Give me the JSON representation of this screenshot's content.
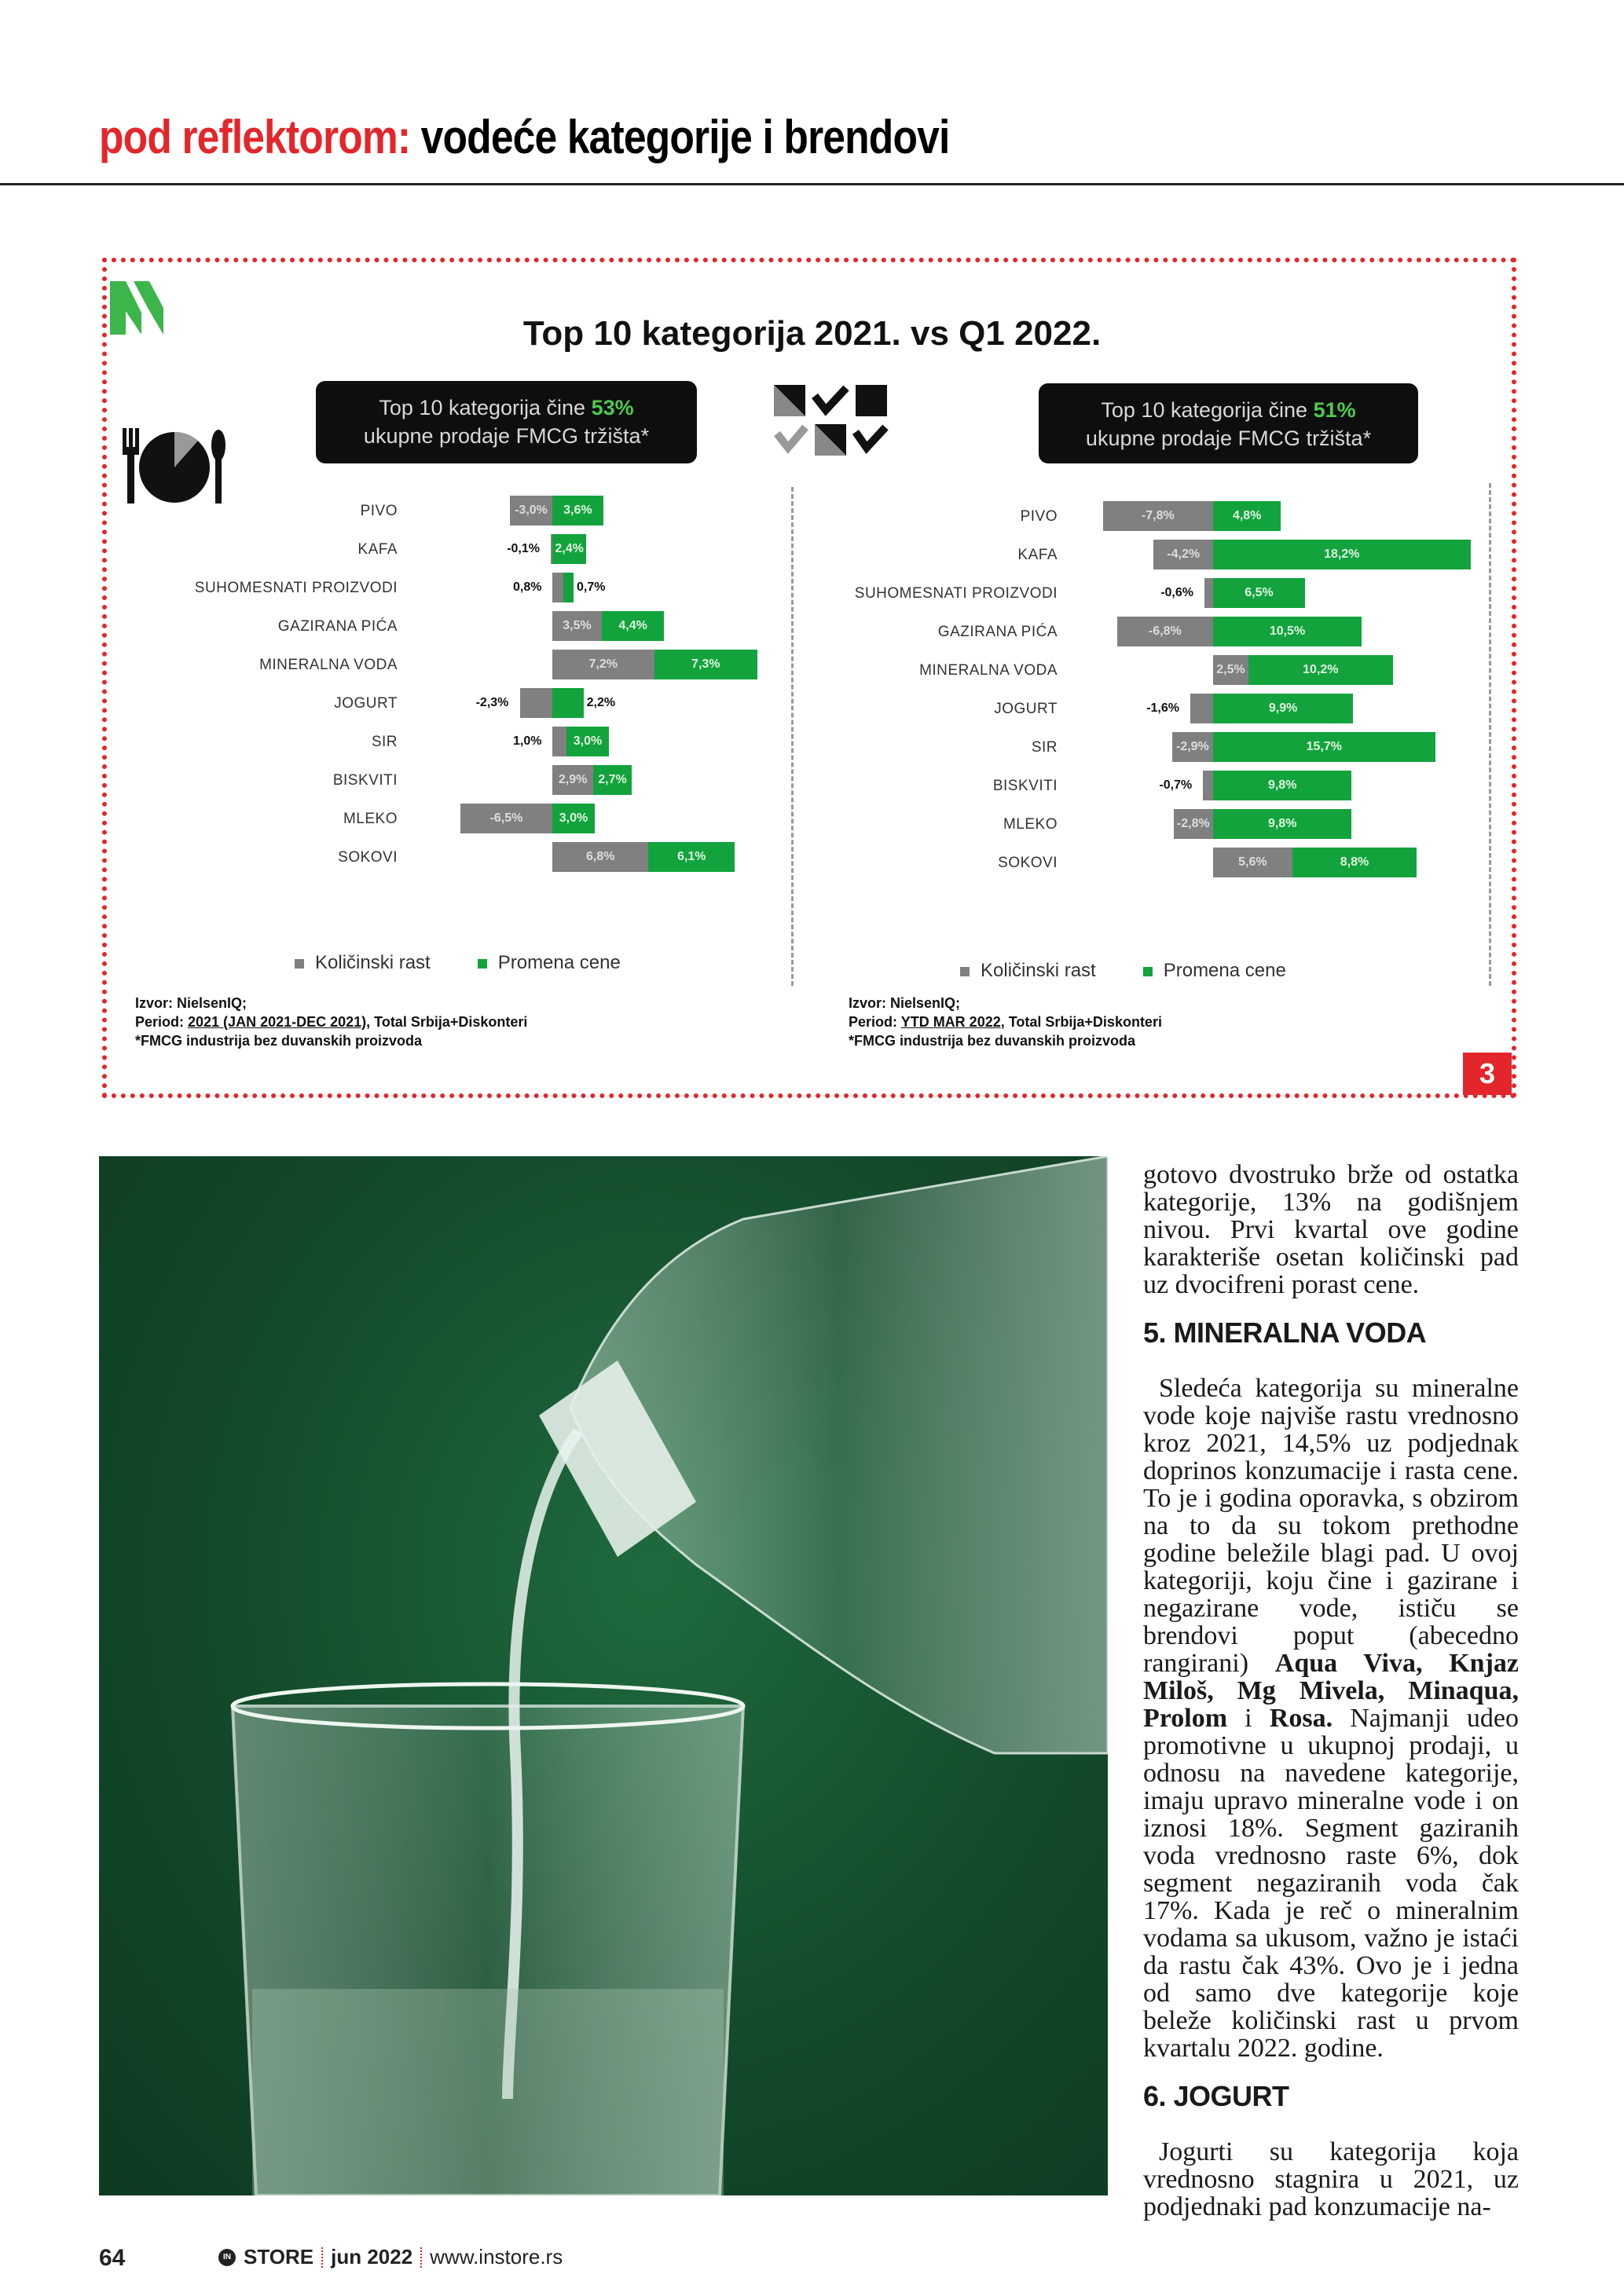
{
  "header": {
    "kicker": "pod reflektorom:",
    "title": "vodeće kategorije i brendovi"
  },
  "infographic": {
    "title": "Top 10 kategorija 2021. vs Q1 2022.",
    "badge": "3",
    "colors": {
      "volume": "#808080",
      "price": "#12a33d",
      "accent": "#e3262b"
    },
    "left_box": {
      "text": "Top 10 kategorija čine ",
      "value": "53%",
      "line2": "ukupne prodaje FMCG tržišta*"
    },
    "right_box": {
      "text": "Top 10 kategorija čine ",
      "value": "51%",
      "line2": "ukupne prodaje FMCG tržišta*"
    },
    "legend": {
      "volume": "Količinski rast",
      "price": "Promena cene"
    },
    "left_source": {
      "l1": "Izvor: NielsenIQ;",
      "l2a": "Period: ",
      "l2b": "2021 (JAN 2021-DEC 2021)",
      "l2c": ", Total Srbija+Diskonteri",
      "l3": "*FMCG industrija bez duvanskih proizvoda"
    },
    "right_source": {
      "l1": "Izvor: NielsenIQ;",
      "l2a": "Period: ",
      "l2b": "YTD MAR 2022",
      "l2c": ", Total Srbija+Diskonteri",
      "l3": "*FMCG industrija bez duvanskih proizvoda"
    }
  },
  "chart_data": [
    {
      "type": "bar",
      "stacked": true,
      "orientation": "horizontal",
      "period": "2021",
      "categories": [
        "PIVO",
        "KAFA",
        "SUHOMESNATI PROIZVODI",
        "GAZIRANA PIĆA",
        "MINERALNA VODA",
        "JOGURT",
        "SIR",
        "BISKVITI",
        "MLEKO",
        "SOKOVI"
      ],
      "series": [
        {
          "name": "Količinski rast",
          "values": [
            -3.0,
            -0.1,
            0.8,
            3.5,
            7.2,
            -2.3,
            1.0,
            2.9,
            -6.5,
            6.8
          ],
          "labels": [
            "-3,0%",
            "-0,1%",
            "0,8%",
            "3,5%",
            "7,2%",
            "-2,3%",
            "1,0%",
            "2,9%",
            "-6,5%",
            "6,8%"
          ]
        },
        {
          "name": "Promena cene",
          "values": [
            3.6,
            2.4,
            0.7,
            4.4,
            7.3,
            2.2,
            3.0,
            2.7,
            3.0,
            6.1
          ],
          "labels": [
            "3,6%",
            "2,4%",
            "0,7%",
            "4,4%",
            "7,3%",
            "2,2%",
            "3,0%",
            "2,7%",
            "3,0%",
            "6,1%"
          ]
        }
      ],
      "legend": "bottom"
    },
    {
      "type": "bar",
      "stacked": true,
      "orientation": "horizontal",
      "period": "Q1 2022",
      "categories": [
        "PIVO",
        "KAFA",
        "SUHOMESNATI PROIZVODI",
        "GAZIRANA PIĆA",
        "MINERALNA VODA",
        "JOGURT",
        "SIR",
        "BISKVITI",
        "MLEKO",
        "SOKOVI"
      ],
      "series": [
        {
          "name": "Količinski rast",
          "values": [
            -7.8,
            -4.2,
            -0.6,
            -6.8,
            2.5,
            -1.6,
            -2.9,
            -0.7,
            -2.8,
            5.6
          ],
          "labels": [
            "-7,8%",
            "-4,2%",
            "-0,6%",
            "-6,8%",
            "2,5%",
            "-1,6%",
            "-2,9%",
            "-0,7%",
            "-2,8%",
            "5,6%"
          ]
        },
        {
          "name": "Promena cene",
          "values": [
            4.8,
            18.2,
            6.5,
            10.5,
            10.2,
            9.9,
            15.7,
            9.8,
            9.8,
            8.8
          ],
          "labels": [
            "4,8%",
            "18,2%",
            "6,5%",
            "10,5%",
            "10,2%",
            "9,9%",
            "15,7%",
            "9,8%",
            "9,8%",
            "8,8%"
          ]
        }
      ],
      "legend": "bottom"
    }
  ],
  "article": {
    "p1": [
      {
        "t": "gotovo dvostruko brže od ostatka kategorije, 13% na godišnjem nivou. Prvi kvartal ove godine karakteriše osetan količinski pad uz dvocifreni porast cene."
      }
    ],
    "h1": "5. MINERALNA VODA",
    "p2": [
      {
        "t": "Sledeća kategorija su mineralne vode koje najviše rastu vrednosno kroz 2021, 14,5% uz podjednak doprinos konzumacije i rasta cene. To je i godina oporavka, s obzirom na to da su tokom prethodne godine beležile blagi pad. U ovoj kategoriji, koju čine i gazirane i negazirane vode, ističu se brendovi poput (abecedno rangirani) "
      },
      {
        "t": "Aqua Viva, Knjaz Miloš, Mg Mivela, Minaqua, Prolom",
        "b": true
      },
      {
        "t": " i "
      },
      {
        "t": "Rosa.",
        "b": true
      },
      {
        "t": " Najmanji udeo promotivne u ukupnoj prodaji, u odnosu na navedene kategorije, imaju upravo mineralne vode i on iznosi 18%. Segment gaziranih voda vrednosno raste 6%, dok segment negaziranih voda čak 17%. Kada je reč o mineralnim vodama sa ukusom, važno je istaći da rastu čak 43%. Ovo je i jedna od samo dve kategorije koje beleže količinski rast u prvom kvartalu 2022. godine."
      }
    ],
    "h2": "6. JOGURT",
    "p3": [
      {
        "t": "Jogurti su kategorija koja vrednosno stagnira u 2021, uz podjednaki pad konzumacije na-"
      }
    ]
  },
  "footer": {
    "page": "64",
    "brand": "STORE",
    "logo": "IN",
    "date": "jun 2022",
    "url": "www.instore.rs"
  }
}
